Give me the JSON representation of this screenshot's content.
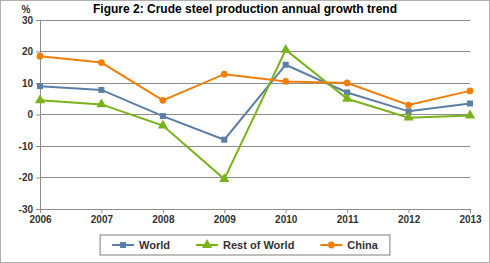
{
  "chart_data": {
    "type": "line",
    "title": "Figure 2: Crude steel production annual growth trend",
    "y_label": "%",
    "categories": [
      "2006",
      "2007",
      "2008",
      "2009",
      "2010",
      "2011",
      "2012",
      "2013"
    ],
    "series": [
      {
        "name": "World",
        "color": "#5a7ea6",
        "marker": "square",
        "values": [
          9,
          7.8,
          -0.5,
          -8,
          15.8,
          7,
          1,
          3.5
        ]
      },
      {
        "name": "Rest of World",
        "color": "#79b31b",
        "marker": "triangle",
        "values": [
          4.5,
          3.2,
          -3.5,
          -20.5,
          20.5,
          5,
          -1,
          -0.3
        ]
      },
      {
        "name": "China",
        "color": "#f07f09",
        "marker": "circle",
        "values": [
          18.5,
          16.5,
          4.5,
          12.8,
          10.5,
          10,
          3,
          7.5
        ]
      }
    ],
    "ylim": [
      -30,
      30
    ],
    "yticks": [
      -30,
      -20,
      -10,
      0,
      10,
      20,
      30
    ],
    "grid": true,
    "legend": "bottom"
  }
}
